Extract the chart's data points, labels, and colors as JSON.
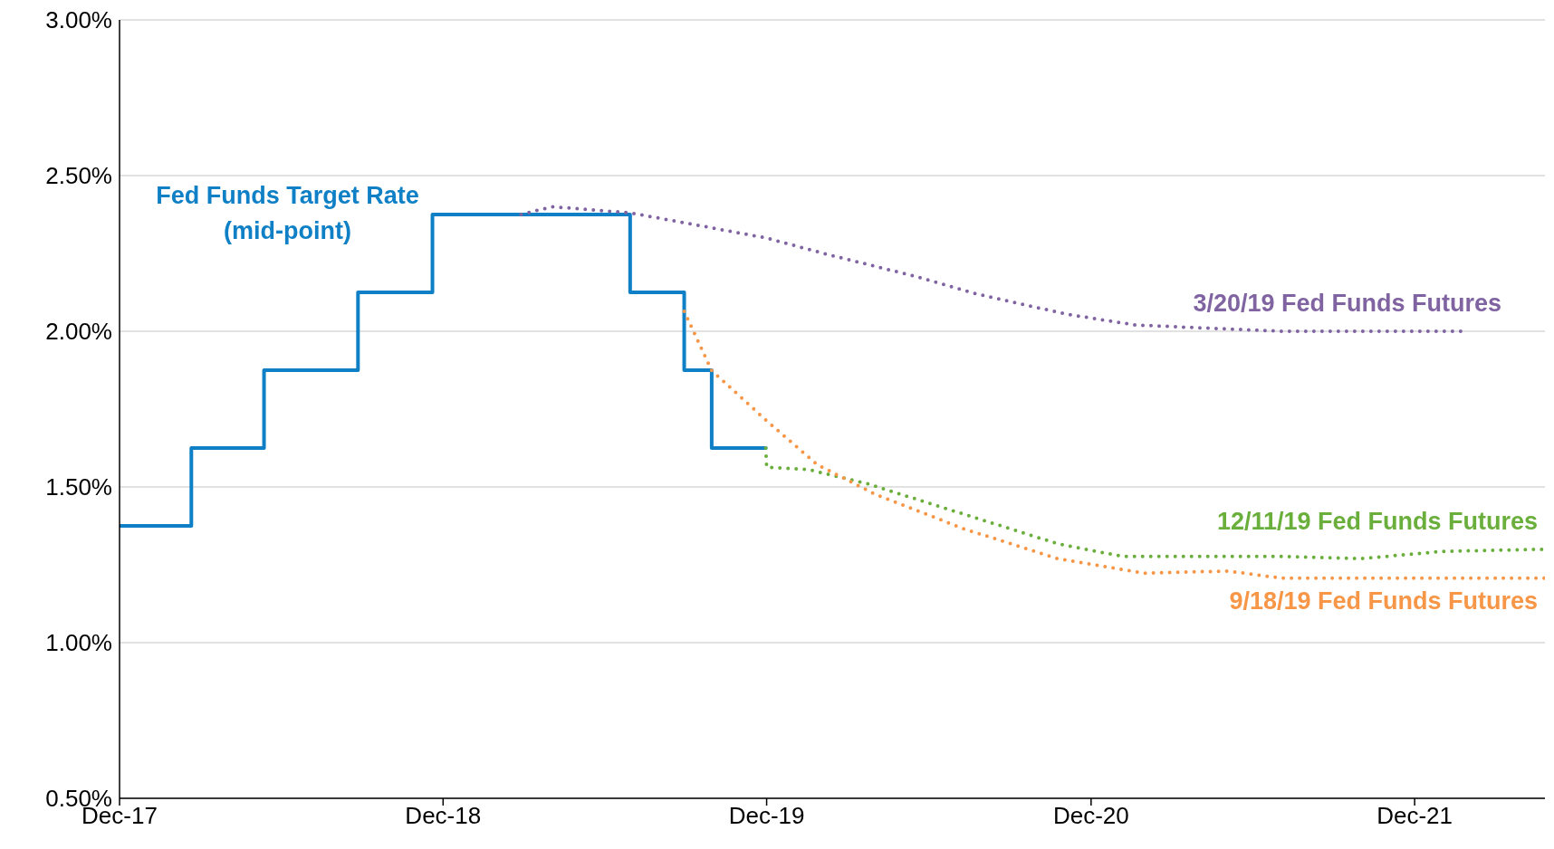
{
  "chart_data": {
    "type": "step",
    "xlim": [
      "2017-12-01",
      "2022-04-27"
    ],
    "ylim": [
      0.5,
      3
    ],
    "xticks": [
      {
        "value": "2017-12-01",
        "label": "Dec-17"
      },
      {
        "value": "2018-12-01",
        "label": "Dec-18"
      },
      {
        "value": "2019-12-01",
        "label": "Dec-19"
      },
      {
        "value": "2020-12-01",
        "label": "Dec-20"
      },
      {
        "value": "2021-12-01",
        "label": "Dec-21"
      }
    ],
    "yticks": [
      {
        "value": 0.5,
        "label": "0.50%"
      },
      {
        "value": 1,
        "label": "1.00%"
      },
      {
        "value": 1.5,
        "label": "1.50%"
      },
      {
        "value": 2,
        "label": "2.00%"
      },
      {
        "value": 2.5,
        "label": "2.50%"
      },
      {
        "value": 3,
        "label": "3.00%"
      }
    ],
    "grid": "y",
    "marker": "none",
    "series": [
      {
        "name": "Fed Funds Target Rate (mid-point)",
        "color": "#0f80c6",
        "line_style": "solid",
        "x": [
          "2017-12-01",
          "2018-02-20",
          "2018-05-13",
          "2018-08-27",
          "2018-11-19",
          "2019-06-30",
          "2019-08-30",
          "2019-09-30",
          "2019-11-30"
        ],
        "values": [
          1.375,
          1.625,
          1.875,
          2.125,
          2.375,
          2.125,
          1.875,
          1.625,
          1.625
        ]
      },
      {
        "name": "3/20/19 Fed Funds Futures",
        "type": "line",
        "color": "#8064a2",
        "line_style": "dotted",
        "x": [
          "2019-02-27",
          "2019-04-03",
          "2019-07-01",
          "2019-11-30",
          "2020-02-10",
          "2020-05-19",
          "2020-07-25",
          "2020-11-03",
          "2021-01-20",
          "2021-07-04",
          "2022-01-22"
        ],
        "values": [
          2.375,
          2.4,
          2.38,
          2.3,
          2.245,
          2.175,
          2.12,
          2.055,
          2.02,
          2.0,
          2.0
        ]
      },
      {
        "name": "12/11/19 Fed Funds Futures",
        "type": "line",
        "color": "#6aaf3b",
        "line_style": "dotted",
        "x": [
          "2019-11-30",
          "2019-12-01",
          "2020-01-17",
          "2020-03-24",
          "2020-07-10",
          "2020-10-24",
          "2021-01-05",
          "2021-07-04",
          "2021-10-03",
          "2022-01-01",
          "2022-04-27"
        ],
        "values": [
          1.625,
          1.563,
          1.556,
          1.51,
          1.413,
          1.318,
          1.277,
          1.277,
          1.27,
          1.293,
          1.3
        ]
      },
      {
        "name": "9/18/19 Fed Funds Futures",
        "type": "line",
        "color": "#f79646",
        "line_style": "dotted",
        "x": [
          "2019-08-30",
          "2019-09-30",
          "2019-11-30",
          "2020-01-27",
          "2020-04-01",
          "2020-07-10",
          "2020-10-24",
          "2021-01-30",
          "2021-05-04",
          "2021-07-04",
          "2022-04-27"
        ],
        "values": [
          2.064,
          1.874,
          1.715,
          1.572,
          1.477,
          1.366,
          1.27,
          1.223,
          1.23,
          1.207,
          1.207
        ]
      }
    ]
  }
}
